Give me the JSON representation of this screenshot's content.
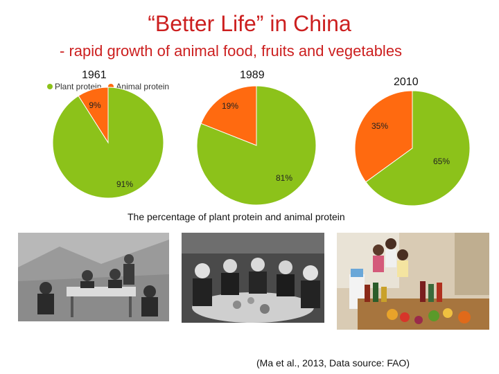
{
  "slide": {
    "title": "“Better Life” in China",
    "subtitle": "- rapid growth of animal food, fruits and vegetables",
    "caption": "The percentage of plant protein and animal protein",
    "citation": "(Ma et al., 2013, Data source: FAO)"
  },
  "legend": [
    {
      "label": "Plant protein",
      "color": "#8cc21a"
    },
    {
      "label": "Animal protein",
      "color": "#ff6a10"
    }
  ],
  "chart_data": [
    {
      "type": "pie",
      "title": "1961",
      "categories": [
        "Plant protein",
        "Animal protein"
      ],
      "values": [
        91,
        9
      ],
      "labels": [
        "91%",
        "9%"
      ]
    },
    {
      "type": "pie",
      "title": "1989",
      "categories": [
        "Plant protein",
        "Animal protein"
      ],
      "values": [
        81,
        19
      ],
      "labels": [
        "81%",
        "19%"
      ]
    },
    {
      "type": "pie",
      "title": "2010",
      "categories": [
        "Plant protein",
        "Animal protein"
      ],
      "values": [
        65,
        35
      ],
      "labels": [
        "65%",
        "35%"
      ]
    }
  ],
  "photos": [
    {
      "name": "photo-1961-family-meal",
      "tone": "#6f6f6f"
    },
    {
      "name": "photo-1989-family-meal",
      "tone": "#5a5a5a"
    },
    {
      "name": "photo-2010-family-food",
      "tone": "#8a6a4a"
    }
  ]
}
